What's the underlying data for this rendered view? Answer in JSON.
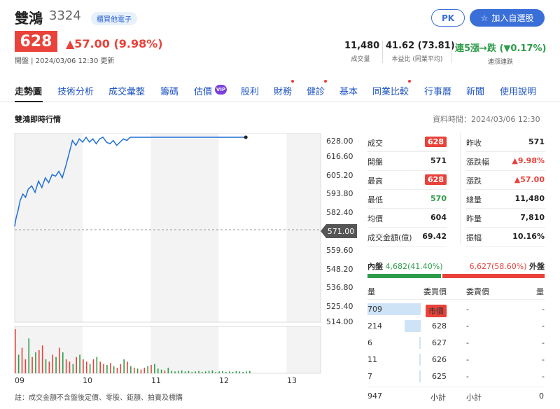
{
  "header": {
    "name": "雙鴻",
    "code": "3324",
    "market": "櫃買他電子",
    "pk_label": "PK",
    "watch_label": "加入自選股",
    "price": "628",
    "change": "▲57.00 (9.98%)",
    "sub_info": "開盤 | 2024/03/06 12:30 更新",
    "colors": {
      "up": "#e8423a",
      "down": "#2e9c4a",
      "accent": "#3a6fd8"
    }
  },
  "stats": [
    {
      "value": "11,480",
      "label": "成交量"
    },
    {
      "value": "41.62 (73.81)",
      "label": "本益比 (同業平均)"
    },
    {
      "value_a": "連5漲→跌",
      "value_b": "(▼0.17%)",
      "label": "連漲連跌"
    }
  ],
  "tabs": [
    "走勢圖",
    "技術分析",
    "成交彙整",
    "籌碼",
    "估價",
    "股利",
    "財務",
    "健診",
    "基本",
    "同業比較",
    "行事曆",
    "新聞",
    "使用說明"
  ],
  "vip_label": "VIP",
  "section_title": "雙鴻即時行情",
  "data_time": "資料時間：2024/03/06 12:30",
  "chart_data": {
    "type": "line",
    "y_ticks": [
      "628.00",
      "616.60",
      "605.20",
      "593.80",
      "582.40",
      "571.00",
      "559.60",
      "548.20",
      "536.80",
      "525.40",
      "514.00"
    ],
    "ylim": [
      514.0,
      628.0
    ],
    "reference_price": "571.00",
    "x_ticks": [
      "09",
      "10",
      "11",
      "12",
      "13"
    ],
    "x_range_hours": [
      9,
      13.5
    ],
    "price_series": {
      "x": [
        9.0,
        9.02,
        9.05,
        9.08,
        9.12,
        9.16,
        9.2,
        9.25,
        9.3,
        9.35,
        9.4,
        9.45,
        9.5,
        9.55,
        9.6,
        9.65,
        9.7,
        9.75,
        9.8,
        9.85,
        9.9,
        9.95,
        10.0,
        10.05,
        10.1,
        10.15,
        10.2,
        10.25,
        10.3,
        10.35,
        10.4,
        10.45,
        10.5,
        10.55,
        10.6,
        10.65,
        10.7,
        10.75,
        10.8,
        12.4
      ],
      "y": [
        573,
        578,
        583,
        589,
        593,
        591,
        596,
        598,
        594,
        601,
        597,
        603,
        600,
        605,
        604,
        607,
        603,
        610,
        618,
        626,
        623,
        627,
        625,
        628,
        625,
        627,
        624,
        627,
        628,
        625,
        624,
        626,
        623,
        625,
        627,
        626,
        628,
        628,
        628,
        628
      ]
    },
    "volume_bars": {
      "x_start": 9.0,
      "x_step": 0.05,
      "values": [
        95,
        40,
        55,
        30,
        75,
        35,
        45,
        50,
        60,
        30,
        25,
        40,
        35,
        55,
        45,
        30,
        25,
        20,
        35,
        40,
        30,
        25,
        20,
        30,
        35,
        25,
        20,
        18,
        22,
        15,
        12,
        20,
        30,
        25,
        15,
        12,
        10,
        8,
        12,
        15,
        18,
        20,
        10,
        8,
        6,
        12,
        5,
        4,
        5,
        6,
        4,
        5,
        3,
        4,
        5,
        3,
        4,
        5,
        6,
        3,
        4,
        5,
        3,
        4,
        3,
        5,
        4,
        3,
        4,
        5
      ],
      "colors": [
        "r",
        "g",
        "r",
        "r",
        "g",
        "r",
        "g",
        "r",
        "r",
        "g",
        "r",
        "r",
        "g",
        "r",
        "g",
        "r",
        "r",
        "g",
        "r",
        "g",
        "r",
        "r",
        "g",
        "r",
        "g",
        "r",
        "r",
        "g",
        "r",
        "g",
        "r",
        "r",
        "g",
        "r",
        "g",
        "r",
        "g",
        "r",
        "r",
        "g",
        "r",
        "g",
        "g",
        "g",
        "r",
        "g",
        "g",
        "g",
        "g",
        "g",
        "g",
        "g",
        "g",
        "g",
        "g",
        "g",
        "g",
        "g",
        "g",
        "g",
        "g",
        "g",
        "g",
        "g",
        "g",
        "g",
        "g",
        "g",
        "g",
        "g"
      ]
    }
  },
  "footnote": "註：成交金額不含盤後定價、零股、鉅額、拍賣及標購",
  "quote": {
    "left": [
      {
        "label": "成交",
        "value": "628",
        "style": "redbox"
      },
      {
        "label": "開盤",
        "value": "571",
        "style": "plain"
      },
      {
        "label": "最高",
        "value": "628",
        "style": "redbox"
      },
      {
        "label": "最低",
        "value": "570",
        "style": "green"
      },
      {
        "label": "均價",
        "value": "604",
        "style": "plain"
      },
      {
        "label": "成交金額(億)",
        "value": "69.42",
        "style": "plain"
      }
    ],
    "right": [
      {
        "label": "昨收",
        "value": "571",
        "style": "plain"
      },
      {
        "label": "漲跌幅",
        "value": "▲9.98%",
        "style": "red"
      },
      {
        "label": "漲跌",
        "value": "▲57.00",
        "style": "red"
      },
      {
        "label": "總量",
        "value": "11,480",
        "style": "plain"
      },
      {
        "label": "昨量",
        "value": "7,810",
        "style": "plain"
      },
      {
        "label": "振幅",
        "value": "10.16%",
        "style": "plain"
      }
    ]
  },
  "inner_outer": {
    "inner_label": "內盤",
    "inner_value": "4,682",
    "inner_pct": "(41.40%)",
    "outer_value": "6,627",
    "outer_pct": "(58.60%)",
    "outer_label": "外盤",
    "inner_fraction": 0.414
  },
  "order_book": {
    "headers": [
      "量",
      "委買價",
      "委賣價",
      "量"
    ],
    "rows": [
      {
        "bid_vol": "709",
        "bid_price": "市價",
        "ask_price": "-",
        "ask_vol": "-",
        "bid_fraction": 1.0
      },
      {
        "bid_vol": "214",
        "bid_price": "628",
        "ask_price": "-",
        "ask_vol": "-",
        "bid_fraction": 0.3
      },
      {
        "bid_vol": "6",
        "bid_price": "627",
        "ask_price": "-",
        "ask_vol": "-",
        "bid_fraction": 0.01
      },
      {
        "bid_vol": "11",
        "bid_price": "626",
        "ask_price": "-",
        "ask_vol": "-",
        "bid_fraction": 0.015
      },
      {
        "bid_vol": "7",
        "bid_price": "625",
        "ask_price": "-",
        "ask_vol": "-",
        "bid_fraction": 0.01
      }
    ],
    "bid_total": "947",
    "bid_total_label": "小計",
    "ask_total_label": "小計",
    "ask_total": "0"
  }
}
